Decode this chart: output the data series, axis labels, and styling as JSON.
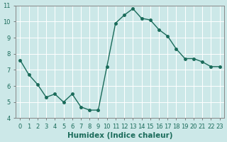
{
  "x": [
    0,
    1,
    2,
    3,
    4,
    5,
    6,
    7,
    8,
    9,
    10,
    11,
    12,
    13,
    14,
    15,
    16,
    17,
    18,
    19,
    20,
    21,
    22,
    23
  ],
  "y": [
    7.6,
    6.7,
    6.1,
    5.3,
    5.5,
    5.0,
    5.5,
    4.7,
    4.5,
    4.5,
    7.2,
    9.9,
    10.4,
    10.8,
    10.2,
    10.1,
    9.5,
    9.1,
    8.3,
    7.7,
    7.7,
    7.5,
    7.2,
    7.2
  ],
  "line_color": "#1a6b5a",
  "marker": "o",
  "marker_size": 2.5,
  "bg_color": "#cce8e8",
  "grid_color": "#ffffff",
  "xlabel": "Humidex (Indice chaleur)",
  "xlim": [
    -0.5,
    23.5
  ],
  "ylim": [
    4,
    11
  ],
  "yticks": [
    4,
    5,
    6,
    7,
    8,
    9,
    10,
    11
  ],
  "xticks": [
    0,
    1,
    2,
    3,
    4,
    5,
    6,
    7,
    8,
    9,
    10,
    11,
    12,
    13,
    14,
    15,
    16,
    17,
    18,
    19,
    20,
    21,
    22,
    23
  ],
  "tick_label_fontsize": 6,
  "xlabel_fontsize": 7.5
}
